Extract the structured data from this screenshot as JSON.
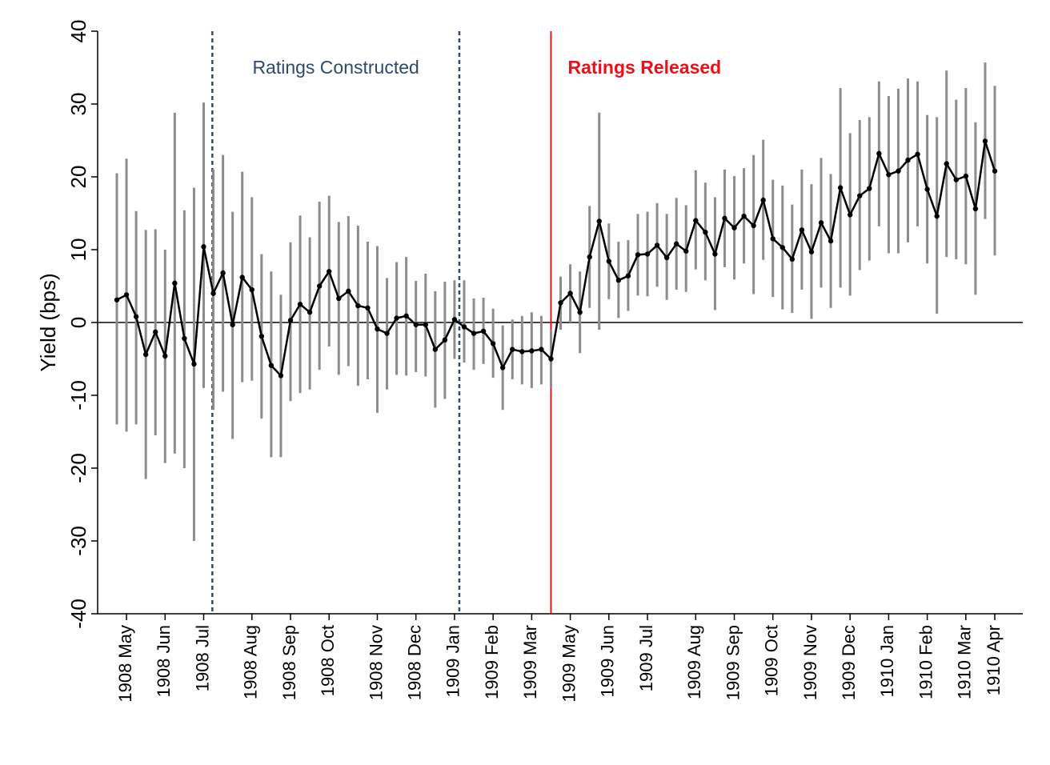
{
  "chart_data": {
    "type": "line",
    "y_label": "Yield (bps)",
    "categories": [
      null,
      "1908 May",
      null,
      null,
      null,
      "1908 Jun",
      null,
      null,
      null,
      "1908 Jul",
      null,
      null,
      null,
      null,
      "1908 Aug",
      null,
      null,
      null,
      "1908 Sep",
      null,
      null,
      null,
      "1908 Oct",
      null,
      null,
      null,
      null,
      "1908 Nov",
      null,
      null,
      null,
      "1908 Dec",
      null,
      null,
      null,
      "1909 Jan",
      null,
      null,
      null,
      "1909 Feb",
      null,
      null,
      null,
      "1909 Mar",
      null,
      null,
      null,
      "1909 May",
      null,
      null,
      null,
      "1909 Jun",
      null,
      null,
      null,
      "1909 Jul",
      null,
      null,
      null,
      null,
      "1909 Aug",
      null,
      null,
      null,
      "1909 Sep",
      null,
      null,
      null,
      "1909 Oct",
      null,
      null,
      null,
      "1909 Nov",
      null,
      null,
      null,
      "1909 Dec",
      null,
      null,
      null,
      "1910 Jan",
      null,
      null,
      null,
      "1910 Feb",
      null,
      null,
      null,
      "1910 Mar",
      null,
      null,
      "1910 Apr"
    ],
    "values": [
      3.1,
      3.8,
      0.8,
      -4.4,
      -1.3,
      -4.6,
      5.4,
      -2.2,
      -5.7,
      10.4,
      4.0,
      6.8,
      -0.3,
      6.2,
      4.5,
      -1.9,
      -5.9,
      -7.3,
      0.3,
      2.5,
      1.4,
      5.0,
      7.0,
      3.3,
      4.3,
      2.3,
      2.0,
      -0.9,
      -1.5,
      0.6,
      0.9,
      -0.3,
      -0.3,
      -3.7,
      -2.4,
      0.4,
      -0.6,
      -1.5,
      -1.2,
      -2.9,
      -6.2,
      -3.7,
      -4.0,
      -3.9,
      -3.7,
      -5.0,
      2.7,
      4.0,
      1.4,
      9.0,
      13.9,
      8.4,
      5.8,
      6.4,
      9.3,
      9.4,
      10.6,
      8.9,
      10.8,
      9.8,
      14.0,
      12.4,
      9.4,
      14.3,
      13.0,
      14.6,
      13.3,
      16.8,
      11.5,
      10.3,
      8.7,
      12.7,
      9.7,
      13.7,
      11.2,
      18.5,
      14.8,
      17.4,
      18.4,
      23.2,
      20.3,
      20.8,
      22.3,
      23.1,
      18.3,
      14.6,
      21.8,
      19.6,
      20.1,
      15.6,
      24.9,
      20.8
    ],
    "low": [
      -14,
      -15,
      -14,
      -21.5,
      -15.5,
      -19.3,
      -18,
      -20,
      -30,
      -9,
      -12,
      -9.5,
      -16,
      -8.2,
      -8,
      -13.2,
      -18.5,
      -18.5,
      -10.8,
      -9.7,
      -9.2,
      -6.5,
      -3.3,
      -7.2,
      -6,
      -8.7,
      -7.8,
      -12.4,
      -9.2,
      -7.2,
      -7.3,
      -6.8,
      -7.4,
      -11.7,
      -10.5,
      -5,
      -5.5,
      -6.5,
      -5.7,
      -7.6,
      -12,
      -7.8,
      -8.5,
      -9,
      -8.5,
      -9,
      -1,
      0,
      -4.2,
      2,
      -1,
      3.2,
      0.6,
      1.6,
      3.7,
      3.6,
      4.9,
      3.1,
      4.5,
      4.2,
      7.3,
      5.8,
      1.7,
      7.6,
      5.9,
      8.1,
      3.9,
      8.6,
      3.5,
      1.8,
      1.3,
      4.5,
      0.5,
      4.8,
      2,
      4.8,
      3.7,
      7.2,
      8.5,
      13.2,
      9.5,
      9.5,
      11,
      13.2,
      8.1,
      1.2,
      9,
      8.7,
      8,
      3.8,
      14.2,
      9.2
    ],
    "high": [
      20.5,
      22.5,
      15.3,
      12.7,
      12.8,
      10,
      28.8,
      15.4,
      18.5,
      30.2,
      21,
      23,
      15.2,
      20.7,
      17.2,
      9.4,
      7,
      3.8,
      11,
      14.7,
      11.7,
      16.6,
      17.4,
      13.8,
      14.6,
      13.3,
      11.1,
      10.5,
      6.1,
      8.3,
      9,
      5.7,
      6.7,
      4.3,
      5.6,
      5.8,
      5.8,
      3.3,
      3.4,
      1.9,
      -0.4,
      0.4,
      0.9,
      1.4,
      0.9,
      -1,
      6.3,
      8,
      7,
      16,
      28.8,
      13.6,
      11.1,
      11.3,
      14.9,
      15.2,
      16.4,
      14.9,
      17.1,
      16.1,
      20.9,
      19.2,
      17.2,
      21,
      20.1,
      21.2,
      23,
      25.1,
      19.6,
      18.8,
      16.2,
      21,
      19,
      22.6,
      20.4,
      32.2,
      26,
      27.8,
      28.2,
      33.1,
      31.1,
      32.1,
      33.5,
      33.1,
      28.5,
      28.2,
      34.6,
      30.6,
      32.2,
      27.5,
      35.7,
      32.5
    ],
    "ylim": [
      -40,
      40
    ],
    "yticks": [
      -40,
      -30,
      -20,
      -10,
      0,
      10,
      20,
      30,
      40
    ],
    "line_color": "#000000",
    "errorbar_color": "#8c8c8c",
    "vlines": [
      {
        "at": 9.9,
        "label": "Ratings Constructed",
        "color": "#2e4a6b",
        "style": "dashed"
      },
      {
        "at": 35.5,
        "color": "#2e4a6b",
        "style": "dashed"
      },
      {
        "at": 45,
        "label": "Ratings Released",
        "color": "#e8101a",
        "style": "solid"
      }
    ]
  }
}
